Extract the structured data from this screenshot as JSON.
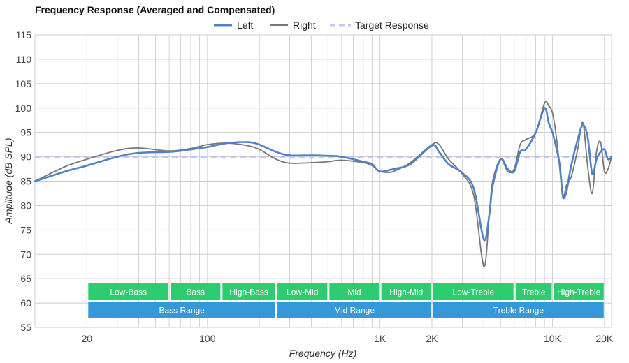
{
  "chart_data": {
    "type": "line",
    "title": "Frequency Response (Averaged and Compensated)",
    "xlabel": "Frequency (Hz)",
    "ylabel": "Amplitude (dB SPL)",
    "x_scale": "log",
    "xlim": [
      10,
      22000
    ],
    "ylim": [
      55,
      115
    ],
    "grid": true,
    "legend_position": "top-center",
    "y_ticks": [
      "55",
      "60",
      "65",
      "70",
      "75",
      "80",
      "85",
      "90",
      "95",
      "100",
      "105",
      "110",
      "115"
    ],
    "x_ticks": [
      {
        "value": 20,
        "label": "20"
      },
      {
        "value": 100,
        "label": "100"
      },
      {
        "value": 1000,
        "label": "1K"
      },
      {
        "value": 2000,
        "label": "2K"
      },
      {
        "value": 10000,
        "label": "10K"
      },
      {
        "value": 20000,
        "label": "20K"
      }
    ],
    "series": [
      {
        "name": "Left",
        "color": "#4f81c7",
        "style": "solid",
        "x": [
          10,
          15,
          20,
          30,
          40,
          60,
          80,
          100,
          130,
          170,
          200,
          250,
          300,
          400,
          500,
          600,
          800,
          900,
          1000,
          1200,
          1500,
          2000,
          2200,
          2500,
          3000,
          3500,
          4000,
          4300,
          4500,
          5000,
          5500,
          6000,
          6500,
          7000,
          8000,
          9000,
          9500,
          10000,
          10500,
          11000,
          11500,
          12000,
          12500,
          13000,
          14000,
          15000,
          16000,
          17000,
          18000,
          19000,
          20000,
          21000,
          22000
        ],
        "y": [
          85,
          87,
          88.2,
          90,
          90.8,
          91,
          91.5,
          92,
          92.8,
          93,
          92.5,
          91,
          90.3,
          90.3,
          90.2,
          90,
          89,
          88.5,
          87,
          87.5,
          88.5,
          92.3,
          91,
          88.5,
          86.7,
          83.5,
          73,
          78,
          84,
          89.5,
          87.5,
          87,
          91,
          91.5,
          95,
          100,
          97,
          95,
          92,
          88.5,
          82,
          82.5,
          86,
          89,
          93.5,
          96.5,
          94,
          86.5,
          89.5,
          91,
          91.5,
          89.5,
          90
        ]
      },
      {
        "name": "Right",
        "color": "#777777",
        "style": "solid",
        "x": [
          10,
          15,
          20,
          30,
          40,
          60,
          80,
          100,
          130,
          170,
          200,
          250,
          300,
          400,
          500,
          600,
          800,
          900,
          1000,
          1100,
          1200,
          1500,
          2000,
          2200,
          2500,
          3000,
          3500,
          4000,
          4300,
          4500,
          5000,
          5500,
          6000,
          6500,
          7000,
          8000,
          9000,
          9500,
          10000,
          10500,
          11000,
          11500,
          12000,
          12500,
          13000,
          14000,
          15000,
          16000,
          17000,
          18000,
          19000,
          20000,
          21000,
          22000
        ],
        "y": [
          85,
          88,
          89.5,
          91.3,
          91.8,
          91.2,
          91.7,
          92.5,
          92.8,
          92.3,
          91.5,
          89.5,
          88.7,
          88.8,
          89,
          89.3,
          88.8,
          88.2,
          87,
          86.8,
          87,
          88.8,
          92.5,
          92.5,
          89.5,
          86.5,
          82,
          67.5,
          78,
          85,
          89.5,
          87,
          87.5,
          92.5,
          93.5,
          95,
          101,
          100.5,
          99,
          94.5,
          88,
          81.5,
          84,
          85,
          86.5,
          91.5,
          97,
          88,
          82.5,
          91,
          93,
          87,
          87.5,
          90
        ]
      },
      {
        "name": "Target Response",
        "color": "#c5c5f5",
        "style": "dashed",
        "x": [
          10,
          22000
        ],
        "y": [
          90,
          90
        ]
      }
    ],
    "bands": [
      {
        "row": 1,
        "label": "Low-Bass",
        "from": 20,
        "to": 60,
        "color": "#2ecc71"
      },
      {
        "row": 1,
        "label": "Bass",
        "from": 60,
        "to": 120,
        "color": "#2ecc71"
      },
      {
        "row": 1,
        "label": "High-Bass",
        "from": 120,
        "to": 250,
        "color": "#2ecc71"
      },
      {
        "row": 1,
        "label": "Low-Mid",
        "from": 250,
        "to": 500,
        "color": "#2ecc71"
      },
      {
        "row": 1,
        "label": "Mid",
        "from": 500,
        "to": 1000,
        "color": "#2ecc71"
      },
      {
        "row": 1,
        "label": "High-Mid",
        "from": 1000,
        "to": 2000,
        "color": "#2ecc71"
      },
      {
        "row": 1,
        "label": "Low-Treble",
        "from": 2000,
        "to": 6000,
        "color": "#2ecc71"
      },
      {
        "row": 1,
        "label": "Treble",
        "from": 6000,
        "to": 10000,
        "color": "#2ecc71"
      },
      {
        "row": 1,
        "label": "High-Treble",
        "from": 10000,
        "to": 20000,
        "color": "#2ecc71"
      },
      {
        "row": 2,
        "label": "Bass Range",
        "from": 20,
        "to": 250,
        "color": "#3498db"
      },
      {
        "row": 2,
        "label": "Mid Range",
        "from": 250,
        "to": 2000,
        "color": "#3498db"
      },
      {
        "row": 2,
        "label": "Treble Range",
        "from": 2000,
        "to": 20000,
        "color": "#3498db"
      }
    ]
  }
}
